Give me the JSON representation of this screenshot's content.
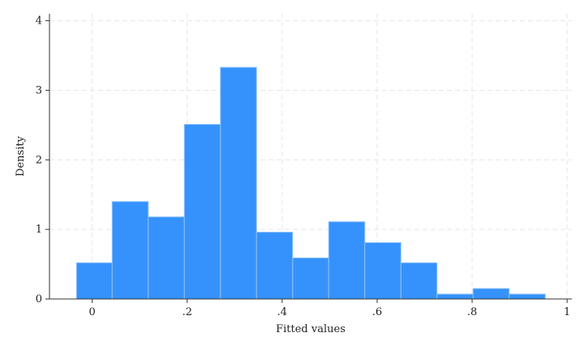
{
  "chart_data": {
    "type": "bar",
    "subtype": "histogram",
    "xlabel": "Fitted values",
    "ylabel": "Density",
    "xlim": [
      -0.09,
      1.01
    ],
    "ylim": [
      0,
      4.1
    ],
    "xticks": [
      0,
      0.2,
      0.4,
      0.6,
      0.8,
      1
    ],
    "xtick_labels": [
      "0",
      ".2",
      ".4",
      ".6",
      ".8",
      "1"
    ],
    "yticks": [
      0,
      1,
      2,
      3,
      4
    ],
    "ytick_labels": [
      "0",
      "1",
      "2",
      "3",
      "4"
    ],
    "grid": true,
    "bar_color": "#3592fd",
    "bar_edge_color": "#8ec2ff",
    "bins": [
      {
        "x0": -0.033,
        "x1": 0.042,
        "density": 0.52
      },
      {
        "x0": 0.042,
        "x1": 0.118,
        "density": 1.4
      },
      {
        "x0": 0.118,
        "x1": 0.194,
        "density": 1.18
      },
      {
        "x0": 0.194,
        "x1": 0.27,
        "density": 2.51
      },
      {
        "x0": 0.27,
        "x1": 0.346,
        "density": 3.33
      },
      {
        "x0": 0.346,
        "x1": 0.422,
        "density": 0.96
      },
      {
        "x0": 0.422,
        "x1": 0.498,
        "density": 0.59
      },
      {
        "x0": 0.498,
        "x1": 0.574,
        "density": 1.11
      },
      {
        "x0": 0.574,
        "x1": 0.65,
        "density": 0.81
      },
      {
        "x0": 0.65,
        "x1": 0.726,
        "density": 0.52
      },
      {
        "x0": 0.726,
        "x1": 0.802,
        "density": 0.07
      },
      {
        "x0": 0.802,
        "x1": 0.878,
        "density": 0.15
      },
      {
        "x0": 0.878,
        "x1": 0.954,
        "density": 0.07
      }
    ]
  }
}
